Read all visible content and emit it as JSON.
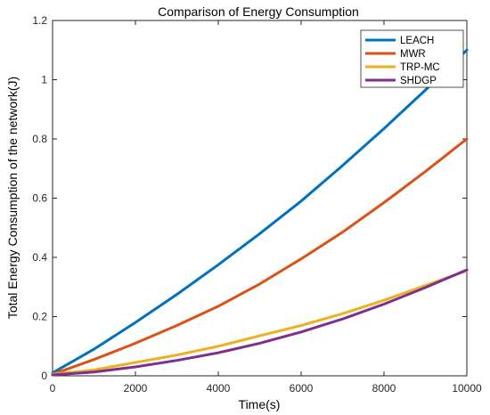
{
  "chart_data": {
    "type": "line",
    "title": "Comparison of Energy Consumption",
    "xlabel": "Time(s)",
    "ylabel": "Total Energy Consumption of the network(J)",
    "xlim": [
      0,
      10000
    ],
    "ylim": [
      0,
      1.2
    ],
    "x_ticks": [
      0,
      2000,
      4000,
      6000,
      8000,
      10000
    ],
    "y_ticks": [
      0,
      0.2,
      0.4,
      0.6,
      0.8,
      1,
      1.2
    ],
    "x_tick_labels": [
      "0",
      "2000",
      "4000",
      "6000",
      "8000",
      "10000"
    ],
    "y_tick_labels": [
      "0",
      "0.2",
      "0.4",
      "0.6",
      "0.8",
      "1",
      "1.2"
    ],
    "grid": false,
    "legend_position": "top-right",
    "x": [
      0,
      1000,
      2000,
      3000,
      4000,
      5000,
      6000,
      7000,
      8000,
      9000,
      10000
    ],
    "series": [
      {
        "name": "LEACH",
        "color": "#0072BD",
        "values": [
          0.01,
          0.09,
          0.18,
          0.275,
          0.375,
          0.48,
          0.59,
          0.71,
          0.835,
          0.965,
          1.1
        ]
      },
      {
        "name": "MWR",
        "color": "#D95319",
        "values": [
          0.005,
          0.055,
          0.11,
          0.17,
          0.235,
          0.31,
          0.395,
          0.485,
          0.585,
          0.69,
          0.8
        ]
      },
      {
        "name": "TRP-MC",
        "color": "#EDB120",
        "values": [
          0.005,
          0.02,
          0.045,
          0.07,
          0.1,
          0.135,
          0.17,
          0.21,
          0.255,
          0.305,
          0.355
        ]
      },
      {
        "name": "SHDGP",
        "color": "#7E2F8E",
        "values": [
          0.003,
          0.013,
          0.03,
          0.052,
          0.078,
          0.11,
          0.148,
          0.192,
          0.242,
          0.298,
          0.358
        ]
      }
    ]
  }
}
